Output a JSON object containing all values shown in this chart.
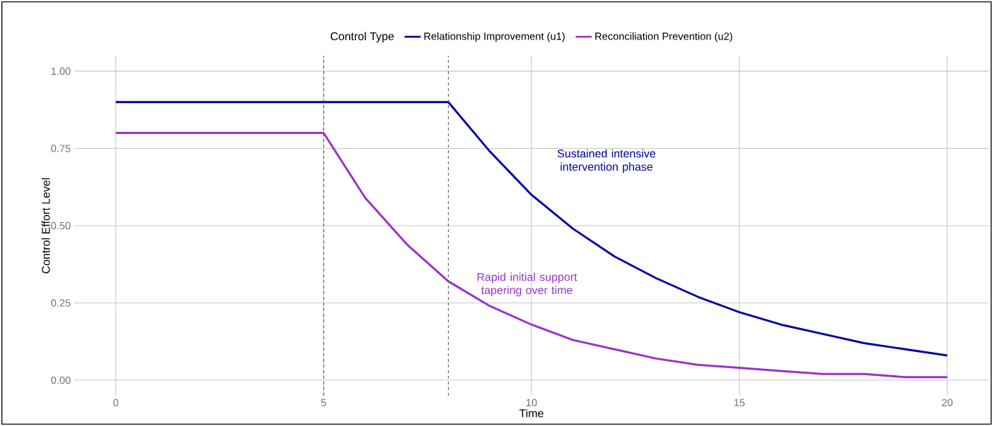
{
  "chart_data": {
    "type": "line",
    "xlabel": "Time",
    "ylabel": "Control Effort Level",
    "legend_title": "Control Type",
    "xlim": [
      -1,
      21
    ],
    "ylim": [
      -0.05,
      1.05
    ],
    "xticks": [
      0,
      5,
      10,
      15,
      20
    ],
    "yticks": [
      {
        "value": 0,
        "label": "0.00"
      },
      {
        "value": 0.25,
        "label": "0.25"
      },
      {
        "value": 0.5,
        "label": "0.50"
      },
      {
        "value": 0.75,
        "label": "0.75"
      },
      {
        "value": 1,
        "label": "1.00"
      }
    ],
    "grid": true,
    "legend": "top",
    "marker": "none",
    "line_style": "solid",
    "series": [
      {
        "name": "Relationship Improvement (u1)",
        "color": "#0000a8",
        "x": [
          0,
          8,
          9,
          10,
          11,
          12,
          13,
          14,
          15,
          16,
          17,
          18,
          19,
          20
        ],
        "values": [
          0.9,
          0.9,
          0.74,
          0.6,
          0.49,
          0.4,
          0.33,
          0.27,
          0.22,
          0.18,
          0.15,
          0.12,
          0.1,
          0.08
        ]
      },
      {
        "name": "Reconciliation Prevention (u2)",
        "color": "#9932cc",
        "x": [
          0,
          5,
          6,
          7,
          8,
          9,
          10,
          11,
          12,
          13,
          14,
          15,
          16,
          17,
          18,
          19,
          20
        ],
        "values": [
          0.8,
          0.8,
          0.59,
          0.44,
          0.32,
          0.24,
          0.18,
          0.13,
          0.1,
          0.07,
          0.05,
          0.04,
          0.03,
          0.02,
          0.02,
          0.01,
          0.01
        ]
      }
    ],
    "ref_lines": [
      {
        "axis": "x",
        "value": 5,
        "color": "#555555",
        "line_style": "dashed"
      },
      {
        "axis": "x",
        "value": 8,
        "color": "#555555",
        "line_style": "dashed"
      }
    ],
    "annotations": [
      "Sustained intensive intervention phase",
      "Rapid initial support tapering over time"
    ]
  }
}
